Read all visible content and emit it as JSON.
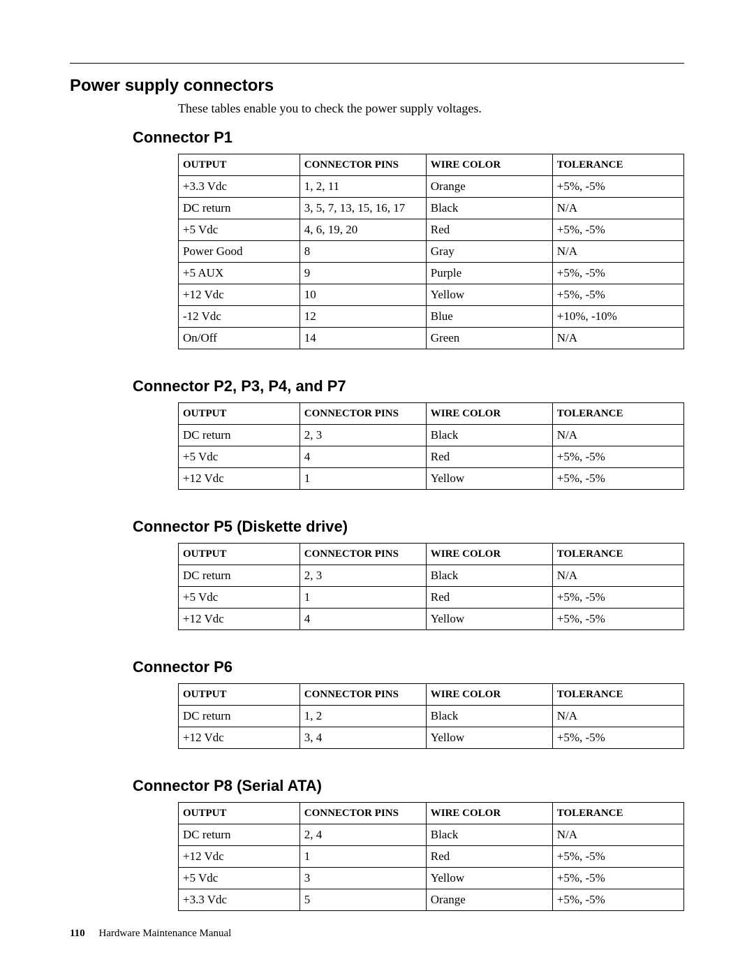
{
  "page": {
    "section_title": "Power supply connectors",
    "intro_text": "These tables enable you to check the power supply voltages.",
    "page_number": "110",
    "doc_title": "Hardware Maintenance Manual"
  },
  "columns": [
    "OUTPUT",
    "CONNECTOR PINS",
    "WIRE COLOR",
    "TOLERANCE"
  ],
  "tables": [
    {
      "title": "Connector P1",
      "rows": [
        [
          "+3.3 Vdc",
          "1, 2, 11",
          "Orange",
          "+5%, -5%"
        ],
        [
          "DC return",
          "3, 5, 7, 13, 15, 16, 17",
          "Black",
          "N/A"
        ],
        [
          "+5 Vdc",
          "4, 6, 19, 20",
          "Red",
          "+5%, -5%"
        ],
        [
          "Power Good",
          "8",
          "Gray",
          "N/A"
        ],
        [
          "+5 AUX",
          "9",
          "Purple",
          "+5%, -5%"
        ],
        [
          "+12 Vdc",
          "10",
          "Yellow",
          "+5%, -5%"
        ],
        [
          "-12 Vdc",
          "12",
          "Blue",
          "+10%, -10%"
        ],
        [
          "On/Off",
          "14",
          "Green",
          "N/A"
        ]
      ]
    },
    {
      "title": "Connector P2, P3, P4, and P7",
      "rows": [
        [
          "DC return",
          "2, 3",
          "Black",
          "N/A"
        ],
        [
          "+5 Vdc",
          "4",
          "Red",
          "+5%, -5%"
        ],
        [
          "+12 Vdc",
          "1",
          "Yellow",
          "+5%, -5%"
        ]
      ]
    },
    {
      "title": "Connector P5 (Diskette drive)",
      "rows": [
        [
          "DC return",
          "2, 3",
          "Black",
          "N/A"
        ],
        [
          "+5 Vdc",
          "1",
          "Red",
          "+5%, -5%"
        ],
        [
          "+12 Vdc",
          "4",
          "Yellow",
          "+5%, -5%"
        ]
      ]
    },
    {
      "title": "Connector P6",
      "rows": [
        [
          "DC return",
          "1, 2",
          "Black",
          "N/A"
        ],
        [
          "+12 Vdc",
          "3, 4",
          "Yellow",
          "+5%, -5%"
        ]
      ]
    },
    {
      "title": "Connector P8 (Serial ATA)",
      "rows": [
        [
          "DC return",
          "2, 4",
          "Black",
          "N/A"
        ],
        [
          "+12 Vdc",
          "1",
          "Red",
          "+5%, -5%"
        ],
        [
          "+5 Vdc",
          "3",
          "Yellow",
          "+5%, -5%"
        ],
        [
          "+3.3 Vdc",
          "5",
          "Orange",
          "+5%, -5%"
        ]
      ]
    }
  ]
}
